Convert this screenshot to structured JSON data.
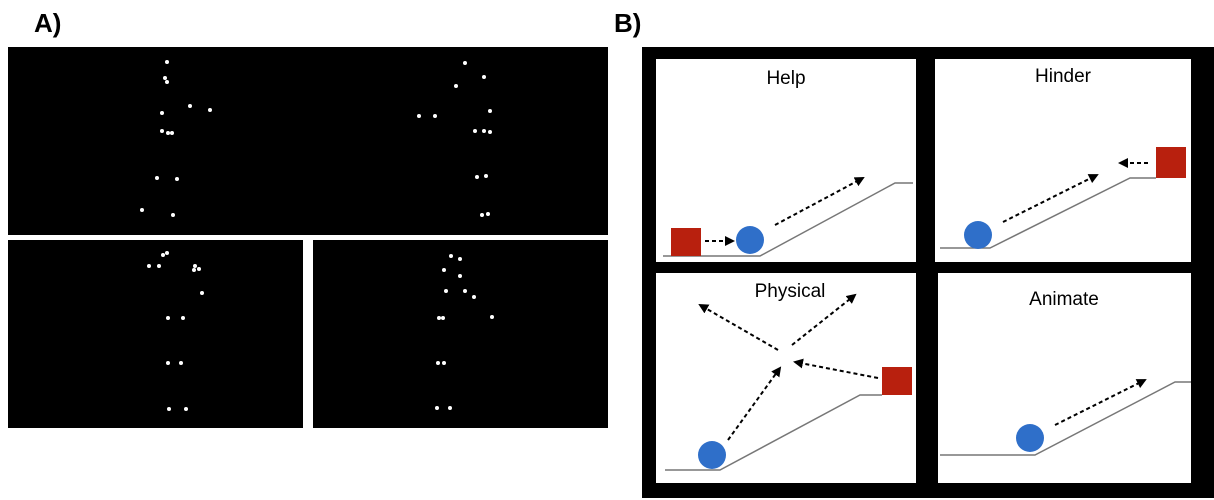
{
  "panel_a": {
    "label": "A)"
  },
  "panel_b": {
    "label": "B)",
    "cells": [
      "Help",
      "Hinder",
      "Physical",
      "Animate"
    ]
  }
}
